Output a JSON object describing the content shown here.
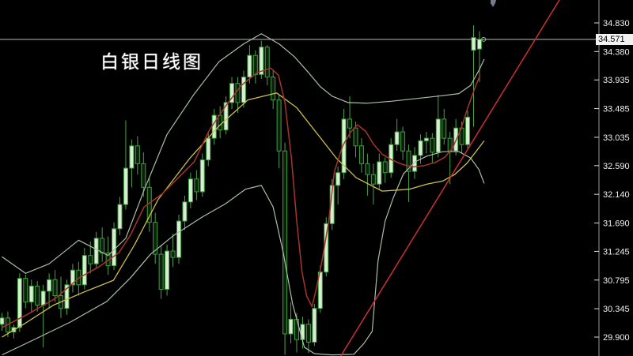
{
  "title": {
    "text": "白银日线图"
  },
  "y_axis": {
    "tick_labels": [
      "34.830",
      "34.380",
      "33.935",
      "33.485",
      "33.035",
      "32.590",
      "32.140",
      "31.690",
      "31.245",
      "30.795",
      "30.345",
      "29.900"
    ],
    "top_price": 35.189,
    "bottom_price": 29.603,
    "current_price": 34.571,
    "current_price_label": "34.571"
  },
  "chart_data": {
    "type": "candlestick",
    "title": "白银日线图",
    "grid": false,
    "legend_position": "none",
    "x_axis_labels": [],
    "y_range": [
      29.603,
      35.189
    ],
    "candles": [
      [
        30.1,
        30.28,
        30.0,
        30.2
      ],
      [
        30.2,
        30.3,
        29.9,
        29.98
      ],
      [
        29.98,
        30.1,
        29.88,
        30.05
      ],
      [
        30.05,
        30.9,
        29.98,
        30.82
      ],
      [
        30.82,
        30.88,
        30.35,
        30.45
      ],
      [
        30.45,
        30.8,
        30.28,
        30.7
      ],
      [
        30.7,
        30.78,
        30.3,
        30.4
      ],
      [
        30.4,
        30.72,
        29.74,
        30.62
      ],
      [
        30.62,
        30.9,
        30.35,
        30.8
      ],
      [
        30.8,
        30.95,
        30.45,
        30.55
      ],
      [
        30.55,
        30.85,
        30.2,
        30.35
      ],
      [
        30.35,
        30.8,
        30.25,
        30.72
      ],
      [
        30.72,
        31.05,
        30.6,
        30.95
      ],
      [
        30.95,
        31.08,
        30.55,
        30.72
      ],
      [
        30.72,
        31.3,
        30.65,
        31.18
      ],
      [
        31.18,
        31.4,
        30.9,
        31.05
      ],
      [
        31.05,
        31.55,
        30.98,
        31.45
      ],
      [
        31.45,
        31.62,
        31.08,
        31.22
      ],
      [
        31.22,
        31.48,
        30.88,
        31.02
      ],
      [
        31.02,
        31.7,
        30.95,
        31.6
      ],
      [
        31.6,
        32.1,
        31.5,
        31.98
      ],
      [
        31.98,
        33.3,
        31.9,
        32.55
      ],
      [
        32.55,
        33.0,
        32.25,
        32.9
      ],
      [
        32.9,
        33.05,
        32.45,
        32.62
      ],
      [
        32.62,
        32.8,
        32.1,
        32.25
      ],
      [
        32.25,
        32.4,
        31.55,
        31.7
      ],
      [
        31.7,
        31.85,
        31.05,
        31.2
      ],
      [
        31.2,
        31.35,
        30.5,
        30.65
      ],
      [
        30.65,
        31.35,
        30.55,
        31.25
      ],
      [
        31.25,
        31.52,
        31.0,
        31.15
      ],
      [
        31.15,
        31.82,
        31.05,
        31.72
      ],
      [
        31.72,
        32.12,
        31.58,
        32.02
      ],
      [
        32.02,
        32.48,
        31.92,
        32.38
      ],
      [
        32.38,
        32.52,
        32.05,
        32.18
      ],
      [
        32.18,
        32.78,
        32.1,
        32.68
      ],
      [
        32.68,
        33.12,
        32.58,
        33.02
      ],
      [
        33.02,
        33.48,
        32.92,
        33.38
      ],
      [
        33.38,
        33.52,
        33.02,
        33.15
      ],
      [
        33.15,
        33.68,
        33.08,
        33.58
      ],
      [
        33.58,
        33.98,
        33.48,
        33.88
      ],
      [
        33.88,
        33.98,
        33.42,
        33.58
      ],
      [
        33.58,
        34.08,
        33.5,
        33.98
      ],
      [
        33.98,
        34.48,
        33.88,
        34.32
      ],
      [
        34.32,
        34.4,
        33.88,
        34.02
      ],
      [
        34.02,
        34.55,
        33.95,
        34.45
      ],
      [
        34.45,
        34.48,
        33.85,
        33.98
      ],
      [
        33.98,
        34.08,
        33.48,
        33.62
      ],
      [
        33.62,
        33.7,
        32.55,
        32.82
      ],
      [
        32.82,
        32.95,
        29.62,
        29.95
      ],
      [
        29.95,
        30.45,
        29.8,
        30.18
      ],
      [
        30.18,
        30.28,
        29.66,
        29.86
      ],
      [
        29.86,
        30.22,
        29.72,
        30.1
      ],
      [
        30.1,
        30.18,
        29.65,
        29.82
      ],
      [
        29.82,
        30.42,
        29.76,
        30.35
      ],
      [
        30.35,
        31.02,
        30.28,
        30.92
      ],
      [
        30.92,
        31.78,
        30.85,
        31.68
      ],
      [
        31.68,
        32.38,
        31.58,
        32.28
      ],
      [
        32.28,
        32.58,
        31.98,
        32.48
      ],
      [
        32.48,
        33.48,
        32.38,
        33.32
      ],
      [
        33.32,
        33.68,
        33.02,
        33.18
      ],
      [
        33.18,
        33.28,
        32.72,
        32.9
      ],
      [
        32.9,
        33.02,
        32.48,
        32.62
      ],
      [
        32.62,
        32.78,
        32.12,
        32.45
      ],
      [
        32.45,
        32.62,
        31.98,
        32.3
      ],
      [
        32.3,
        32.78,
        32.22,
        32.65
      ],
      [
        32.65,
        32.72,
        32.32,
        32.48
      ],
      [
        32.48,
        33.02,
        32.4,
        32.92
      ],
      [
        32.92,
        33.32,
        32.82,
        33.12
      ],
      [
        33.12,
        33.2,
        32.68,
        32.82
      ],
      [
        32.82,
        32.92,
        32.02,
        32.5
      ],
      [
        32.5,
        32.88,
        32.38,
        32.75
      ],
      [
        32.75,
        33.08,
        32.62,
        32.98
      ],
      [
        32.98,
        33.12,
        32.78,
        33.02
      ],
      [
        33.02,
        33.1,
        32.62,
        32.8
      ],
      [
        32.8,
        33.7,
        32.72,
        33.32
      ],
      [
        33.32,
        33.48,
        32.92,
        33.02
      ],
      [
        33.02,
        33.12,
        32.3,
        32.82
      ],
      [
        32.82,
        33.32,
        32.75,
        33.18
      ],
      [
        33.18,
        33.28,
        32.78,
        32.92
      ],
      [
        32.92,
        33.45,
        32.85,
        33.35
      ],
      [
        34.4,
        34.79,
        33.2,
        34.6
      ],
      [
        34.42,
        34.7,
        33.9,
        34.571
      ]
    ],
    "overlays": [
      {
        "name": "bollinger-upper",
        "color": "#a9bfa9",
        "width": 1.2,
        "points": [
          [
            0,
            31.16
          ],
          [
            4,
            30.9
          ],
          [
            8,
            31.05
          ],
          [
            13,
            31.42
          ],
          [
            18,
            31.18
          ],
          [
            21,
            31.45
          ],
          [
            24,
            32.18
          ],
          [
            28,
            33.08
          ],
          [
            32.5,
            33.7
          ],
          [
            36.8,
            34.22
          ],
          [
            41,
            34.5
          ],
          [
            44,
            34.66
          ],
          [
            47,
            34.5
          ],
          [
            49.6,
            34.3
          ],
          [
            52,
            34.05
          ],
          [
            54,
            33.83
          ],
          [
            56,
            33.68
          ],
          [
            58.7,
            33.58
          ],
          [
            62,
            33.57
          ],
          [
            66,
            33.6
          ],
          [
            70,
            33.64
          ],
          [
            74,
            33.68
          ],
          [
            77.5,
            33.72
          ],
          [
            79.5,
            33.85
          ],
          [
            81,
            34.1
          ],
          [
            81.8,
            34.26
          ]
        ]
      },
      {
        "name": "bollinger-lower",
        "color": "#a9bfa9",
        "width": 1.2,
        "points": [
          [
            0,
            29.62
          ],
          [
            5,
            29.84
          ],
          [
            11.7,
            30.14
          ],
          [
            17.8,
            30.46
          ],
          [
            21.8,
            30.83
          ],
          [
            25.2,
            31.2
          ],
          [
            29.2,
            31.5
          ],
          [
            33.9,
            31.78
          ],
          [
            37.9,
            31.99
          ],
          [
            41.3,
            32.22
          ],
          [
            44,
            32.28
          ],
          [
            46,
            31.94
          ],
          [
            47.7,
            31.23
          ],
          [
            49.3,
            30.42
          ],
          [
            51.3,
            29.74
          ],
          [
            53,
            29.64
          ],
          [
            56,
            29.62
          ],
          [
            59.7,
            29.63
          ],
          [
            61.4,
            29.8
          ],
          [
            62.8,
            29.99
          ],
          [
            63.8,
            31.1
          ],
          [
            65,
            31.72
          ],
          [
            66.4,
            32.09
          ],
          [
            68.1,
            32.46
          ],
          [
            70.1,
            32.65
          ],
          [
            72.1,
            32.74
          ],
          [
            74.8,
            32.81
          ],
          [
            77.5,
            32.81
          ],
          [
            79.5,
            32.71
          ],
          [
            80.9,
            32.53
          ],
          [
            81.8,
            32.31
          ]
        ]
      },
      {
        "name": "ma-slow-yellow",
        "color": "#cfc04a",
        "width": 1.3,
        "points": [
          [
            0,
            29.9
          ],
          [
            4,
            30.12
          ],
          [
            8.7,
            30.4
          ],
          [
            14,
            30.61
          ],
          [
            18.9,
            30.79
          ],
          [
            22.5,
            31.35
          ],
          [
            26.5,
            32.06
          ],
          [
            31.9,
            32.71
          ],
          [
            36.8,
            33.21
          ],
          [
            41.7,
            33.62
          ],
          [
            46.6,
            33.73
          ],
          [
            50,
            33.5
          ],
          [
            53.4,
            33.1
          ],
          [
            56.7,
            32.71
          ],
          [
            60.1,
            32.4
          ],
          [
            64.5,
            32.19
          ],
          [
            69.1,
            32.22
          ],
          [
            72.1,
            32.3
          ],
          [
            74.8,
            32.35
          ],
          [
            76.8,
            32.45
          ],
          [
            78.9,
            32.63
          ],
          [
            80.9,
            32.87
          ],
          [
            81.8,
            32.98
          ]
        ]
      },
      {
        "name": "ma-fast-red",
        "color": "#a8352a",
        "width": 1.5,
        "points": [
          [
            0,
            30.05
          ],
          [
            4.4,
            30.26
          ],
          [
            9.1,
            30.51
          ],
          [
            13.1,
            30.83
          ],
          [
            16.4,
            31.0
          ],
          [
            19.8,
            31.22
          ],
          [
            21.8,
            31.5
          ],
          [
            24.1,
            31.94
          ],
          [
            27.2,
            32.15
          ],
          [
            29.9,
            32.4
          ],
          [
            32.6,
            32.65
          ],
          [
            35.2,
            33.15
          ],
          [
            37.9,
            33.52
          ],
          [
            40.6,
            33.85
          ],
          [
            43.3,
            34.05
          ],
          [
            45.6,
            34.12
          ],
          [
            46.9,
            34.01
          ],
          [
            48,
            33.58
          ],
          [
            49.1,
            32.71
          ],
          [
            50,
            31.72
          ],
          [
            50.9,
            30.92
          ],
          [
            51.7,
            30.54
          ],
          [
            52.6,
            30.38
          ],
          [
            53.4,
            30.69
          ],
          [
            54.3,
            31.1
          ],
          [
            55.4,
            31.7
          ],
          [
            56.4,
            32.5
          ],
          [
            57.8,
            32.9
          ],
          [
            59.1,
            33.11
          ],
          [
            60.3,
            33.23
          ],
          [
            61.7,
            33.13
          ],
          [
            63,
            32.93
          ],
          [
            64.5,
            32.77
          ],
          [
            66.1,
            32.68
          ],
          [
            67.9,
            32.61
          ],
          [
            69.7,
            32.57
          ],
          [
            71.6,
            32.59
          ],
          [
            73.5,
            32.64
          ],
          [
            75.1,
            32.72
          ],
          [
            76.4,
            32.86
          ],
          [
            77.8,
            33.15
          ],
          [
            79.1,
            33.52
          ],
          [
            80.2,
            33.8
          ],
          [
            81.1,
            34.01
          ]
        ]
      }
    ],
    "trendline": {
      "color": "#bf3030",
      "from": {
        "index": 57.4,
        "price": 29.59
      },
      "to": {
        "index": 94.7,
        "price": 35.21
      }
    },
    "price_line": {
      "price": 34.571,
      "color": "#bdbdbd"
    },
    "last_price_marker": {
      "index": 81.3,
      "price": 34.571
    },
    "colors": {
      "background": "#000000",
      "candle_border": "#3da03d",
      "bull_fill": "#d8eed2",
      "bear_fill": "#0d1f0d",
      "wick": "#4aa44a",
      "axis_line": "#9a9a9a",
      "axis_text": "#f0f0f0"
    }
  }
}
